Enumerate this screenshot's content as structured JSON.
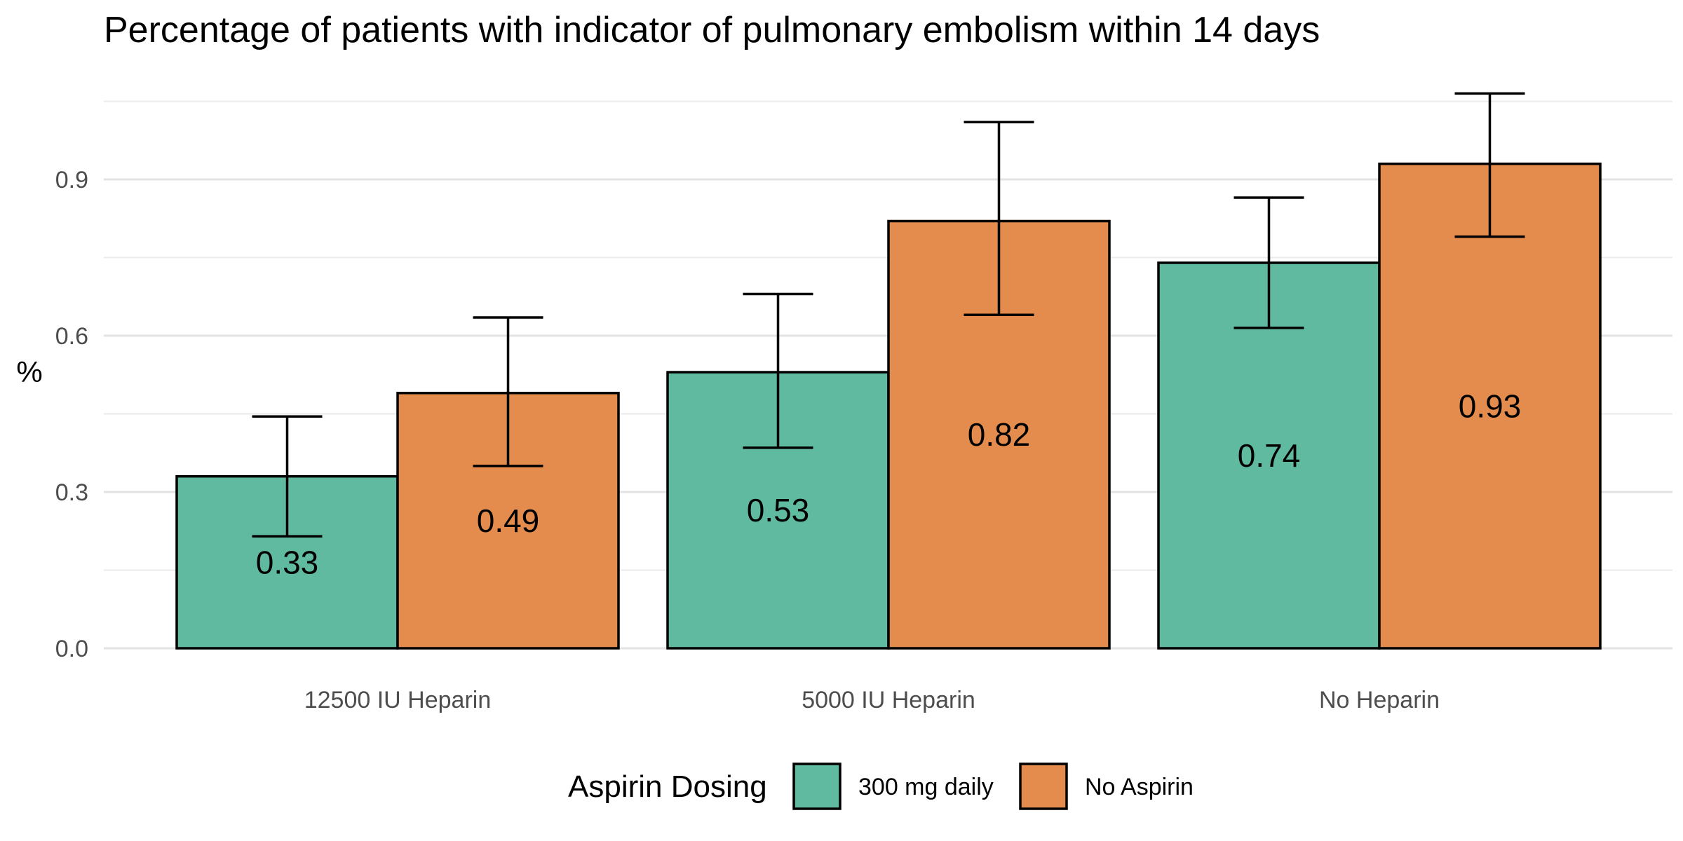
{
  "chart_data": {
    "type": "bar",
    "title": "Percentage of patients with indicator of pulmonary embolism within 14 days",
    "xlabel": "",
    "ylabel": "%",
    "categories": [
      "12500 IU Heparin",
      "5000 IU Heparin",
      "No Heparin"
    ],
    "series": [
      {
        "name": "300 mg daily",
        "color": "#5fba9f",
        "values": [
          0.33,
          0.53,
          0.74
        ],
        "labels": [
          "0.33",
          "0.53",
          "0.74"
        ],
        "error_low": [
          0.215,
          0.385,
          0.615
        ],
        "error_high": [
          0.445,
          0.68,
          0.865
        ]
      },
      {
        "name": "No Aspirin",
        "color": "#e38c4d",
        "values": [
          0.49,
          0.82,
          0.93
        ],
        "labels": [
          "0.49",
          "0.82",
          "0.93"
        ],
        "error_low": [
          0.35,
          0.64,
          0.79
        ],
        "error_high": [
          0.635,
          1.01,
          1.065
        ]
      }
    ],
    "ylim": [
      0,
      1.05
    ],
    "yticks": [
      0.0,
      0.3,
      0.6,
      0.9
    ],
    "ytick_labels": [
      "0.0",
      "0.3",
      "0.6",
      "0.9"
    ],
    "grid": true,
    "legend_title": "Aspirin Dosing",
    "legend_position": "bottom"
  }
}
